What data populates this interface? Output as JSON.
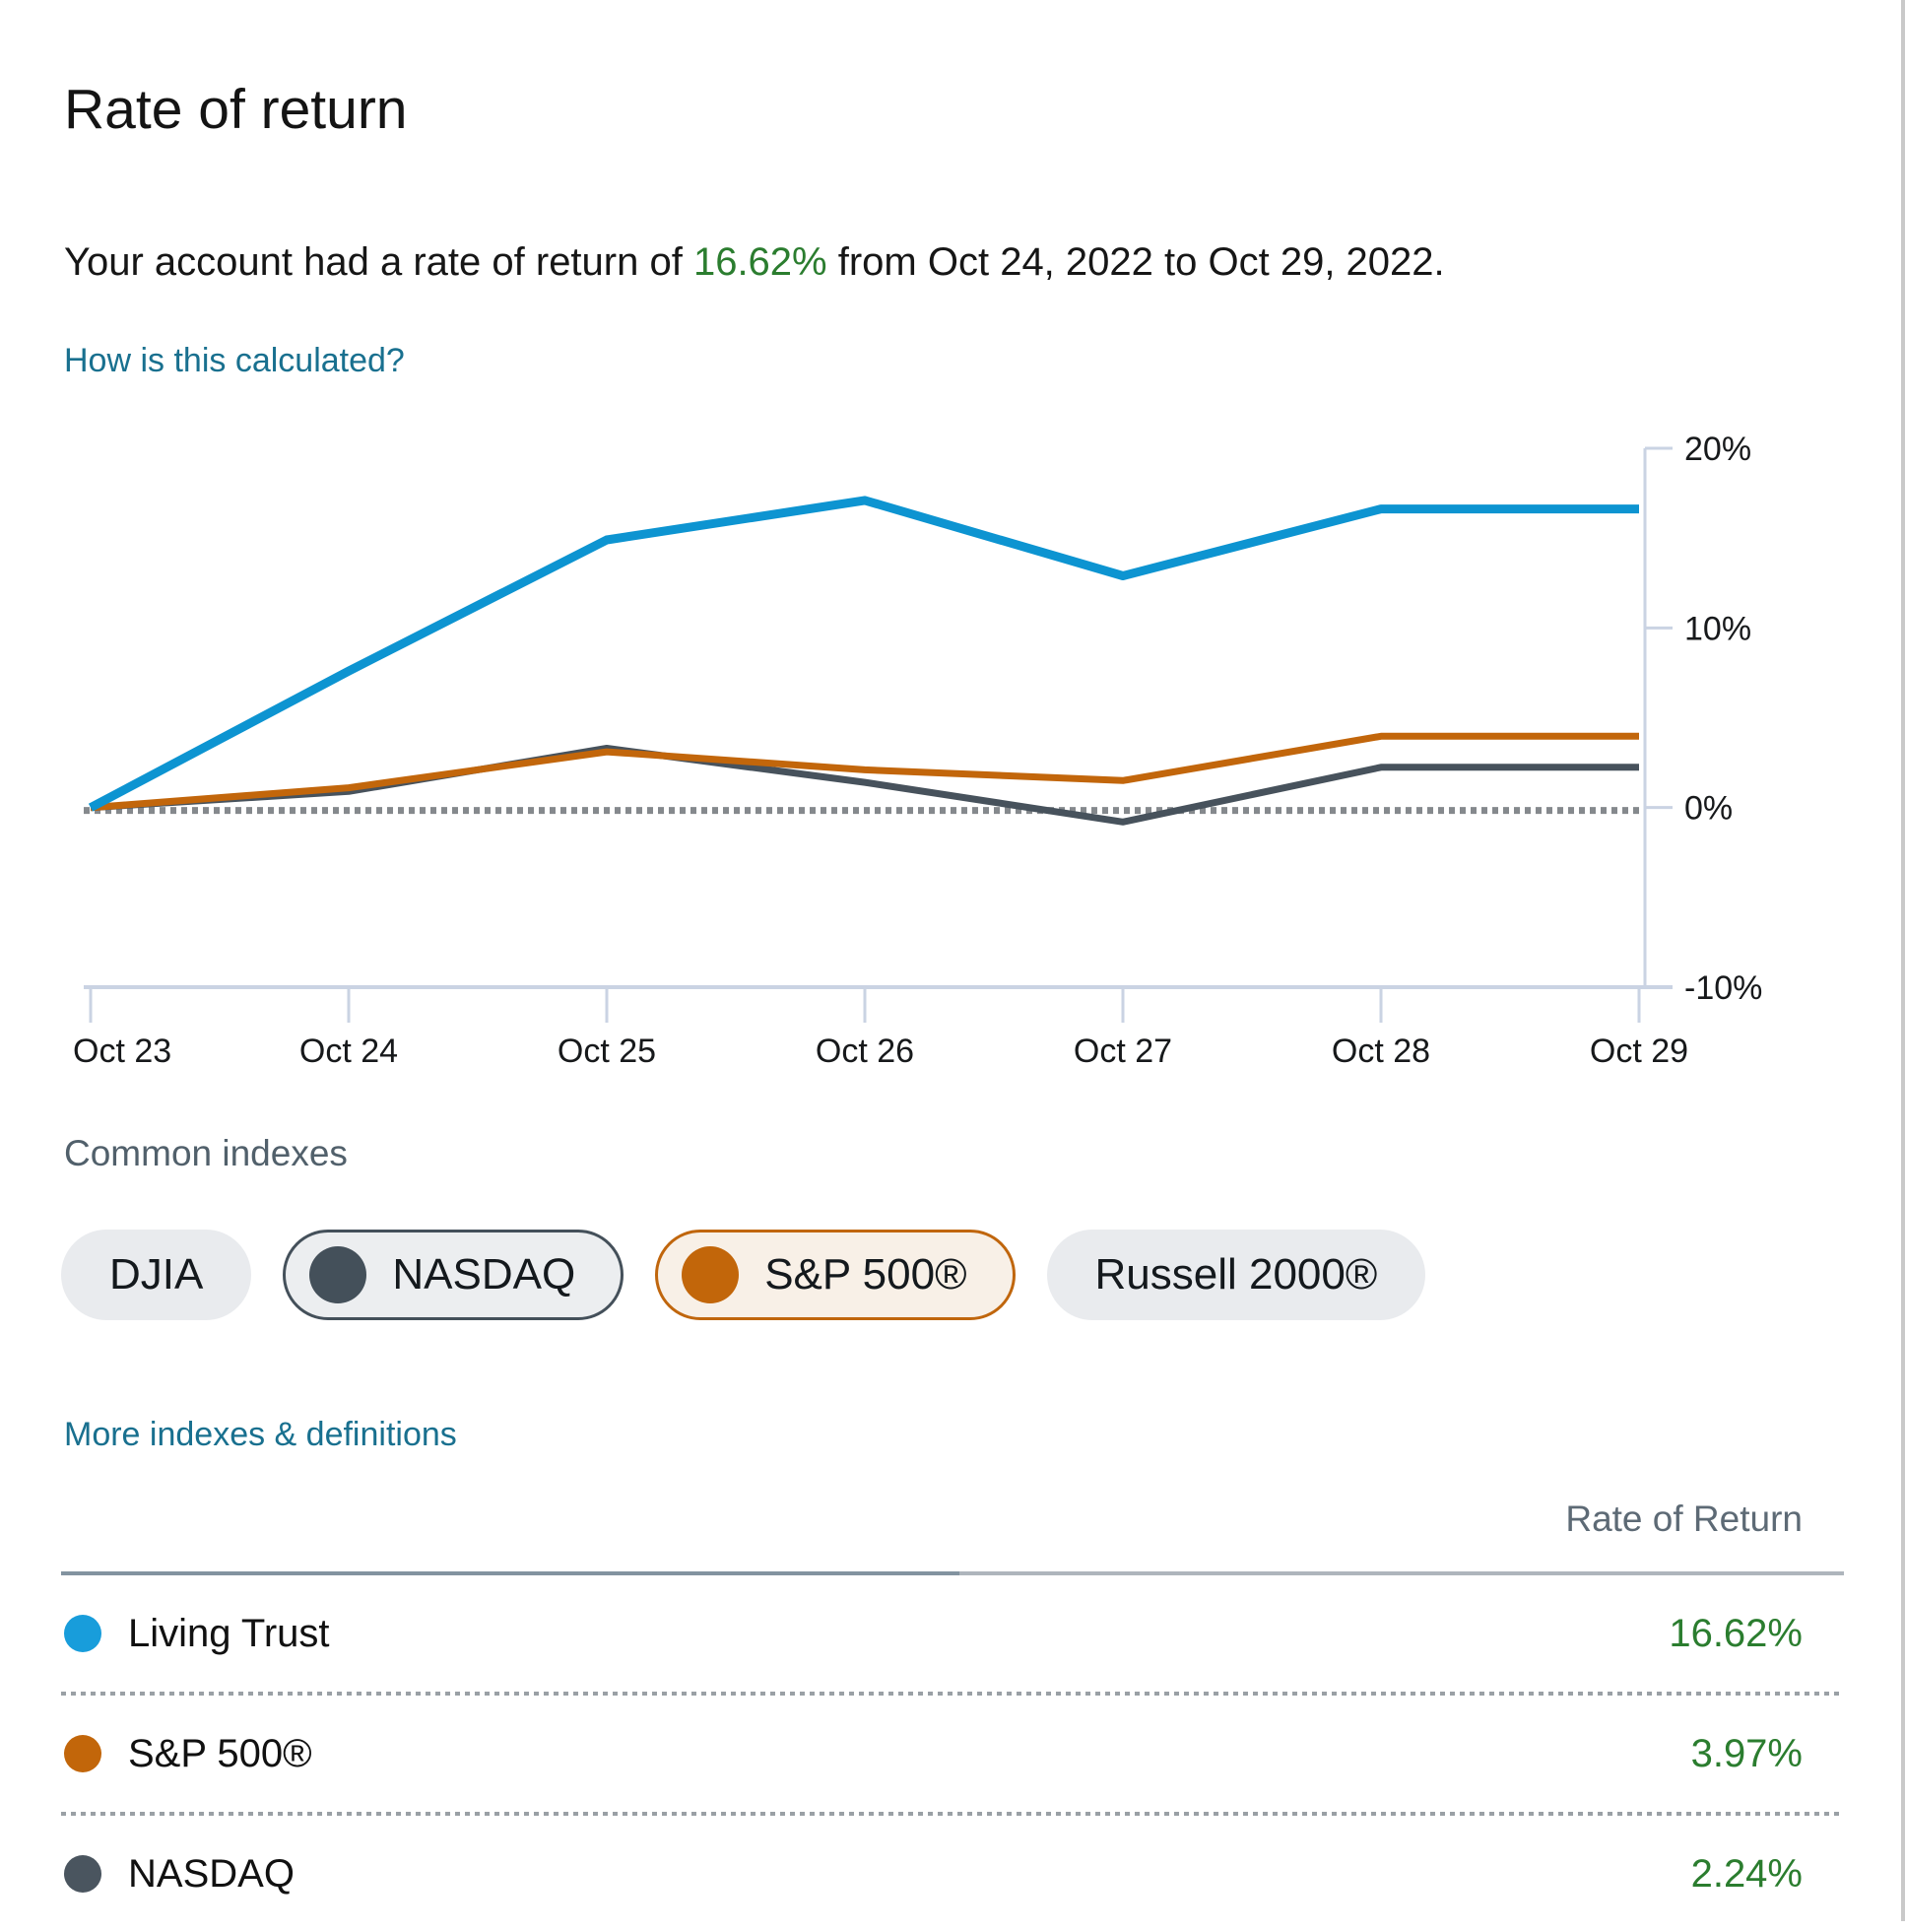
{
  "page": {
    "title": "Rate of return",
    "subtitle_prefix": "Your account had a rate of return of ",
    "subtitle_value": "16.62%",
    "subtitle_suffix": " from Oct 24, 2022 to Oct 29, 2022.",
    "calc_link": "How is this calculated?",
    "common_indexes_label": "Common indexes",
    "more_link": "More indexes & definitions"
  },
  "colors": {
    "green_value": "#2b7d2f",
    "link_blue": "#19708f",
    "axis_line": "#cad3e3",
    "zero_dotted": "#85898d",
    "blue_line": "#0d94d1",
    "orange_line": "#c2660b",
    "dark_line": "#47525c"
  },
  "legend_pills": [
    {
      "label": "DJIA",
      "selected": false,
      "color": null,
      "style": null
    },
    {
      "label": "NASDAQ",
      "selected": true,
      "color": "#44505a",
      "style": "dark"
    },
    {
      "label": "S&P 500®",
      "selected": true,
      "color": "#c2660a",
      "style": "orange"
    },
    {
      "label": "Russell 2000®",
      "selected": false,
      "color": null,
      "style": null
    }
  ],
  "chart_data": {
    "type": "line",
    "categories": [
      "Oct 23",
      "Oct 24",
      "Oct 25",
      "Oct 26",
      "Oct 27",
      "Oct 28",
      "Oct 29"
    ],
    "series": [
      {
        "name": "NASDAQ",
        "color": "#47525c",
        "stroke_width": 7,
        "values": [
          0,
          0.9,
          3.3,
          1.4,
          -0.8,
          2.24,
          2.24
        ]
      },
      {
        "name": "S&P 500®",
        "color": "#c2660b",
        "stroke_width": 7,
        "values": [
          0,
          1.1,
          3.1,
          2.1,
          1.5,
          3.97,
          3.97
        ]
      },
      {
        "name": "Living Trust",
        "color": "#0d94d1",
        "stroke_width": 9,
        "values": [
          0,
          7.6,
          14.9,
          17.1,
          12.9,
          16.62,
          16.62
        ]
      }
    ],
    "ylim": [
      -10,
      20
    ],
    "yticks": [
      {
        "value": 20,
        "label": "20%"
      },
      {
        "value": 10,
        "label": "10%"
      },
      {
        "value": 0,
        "label": "0%"
      },
      {
        "value": -10,
        "label": "-10%"
      }
    ],
    "y_axis_side": "right",
    "grid": false,
    "zero_reference_line": true,
    "title": "",
    "xlabel": "",
    "ylabel": ""
  },
  "table": {
    "header": "Rate of Return",
    "rows": [
      {
        "name": "Living Trust",
        "dot_color": "#189ddb",
        "value": "16.62%"
      },
      {
        "name": "S&P 500®",
        "dot_color": "#c2660a",
        "value": "3.97%"
      },
      {
        "name": "NASDAQ",
        "dot_color": "#4a555f",
        "value": "2.24%"
      }
    ]
  }
}
